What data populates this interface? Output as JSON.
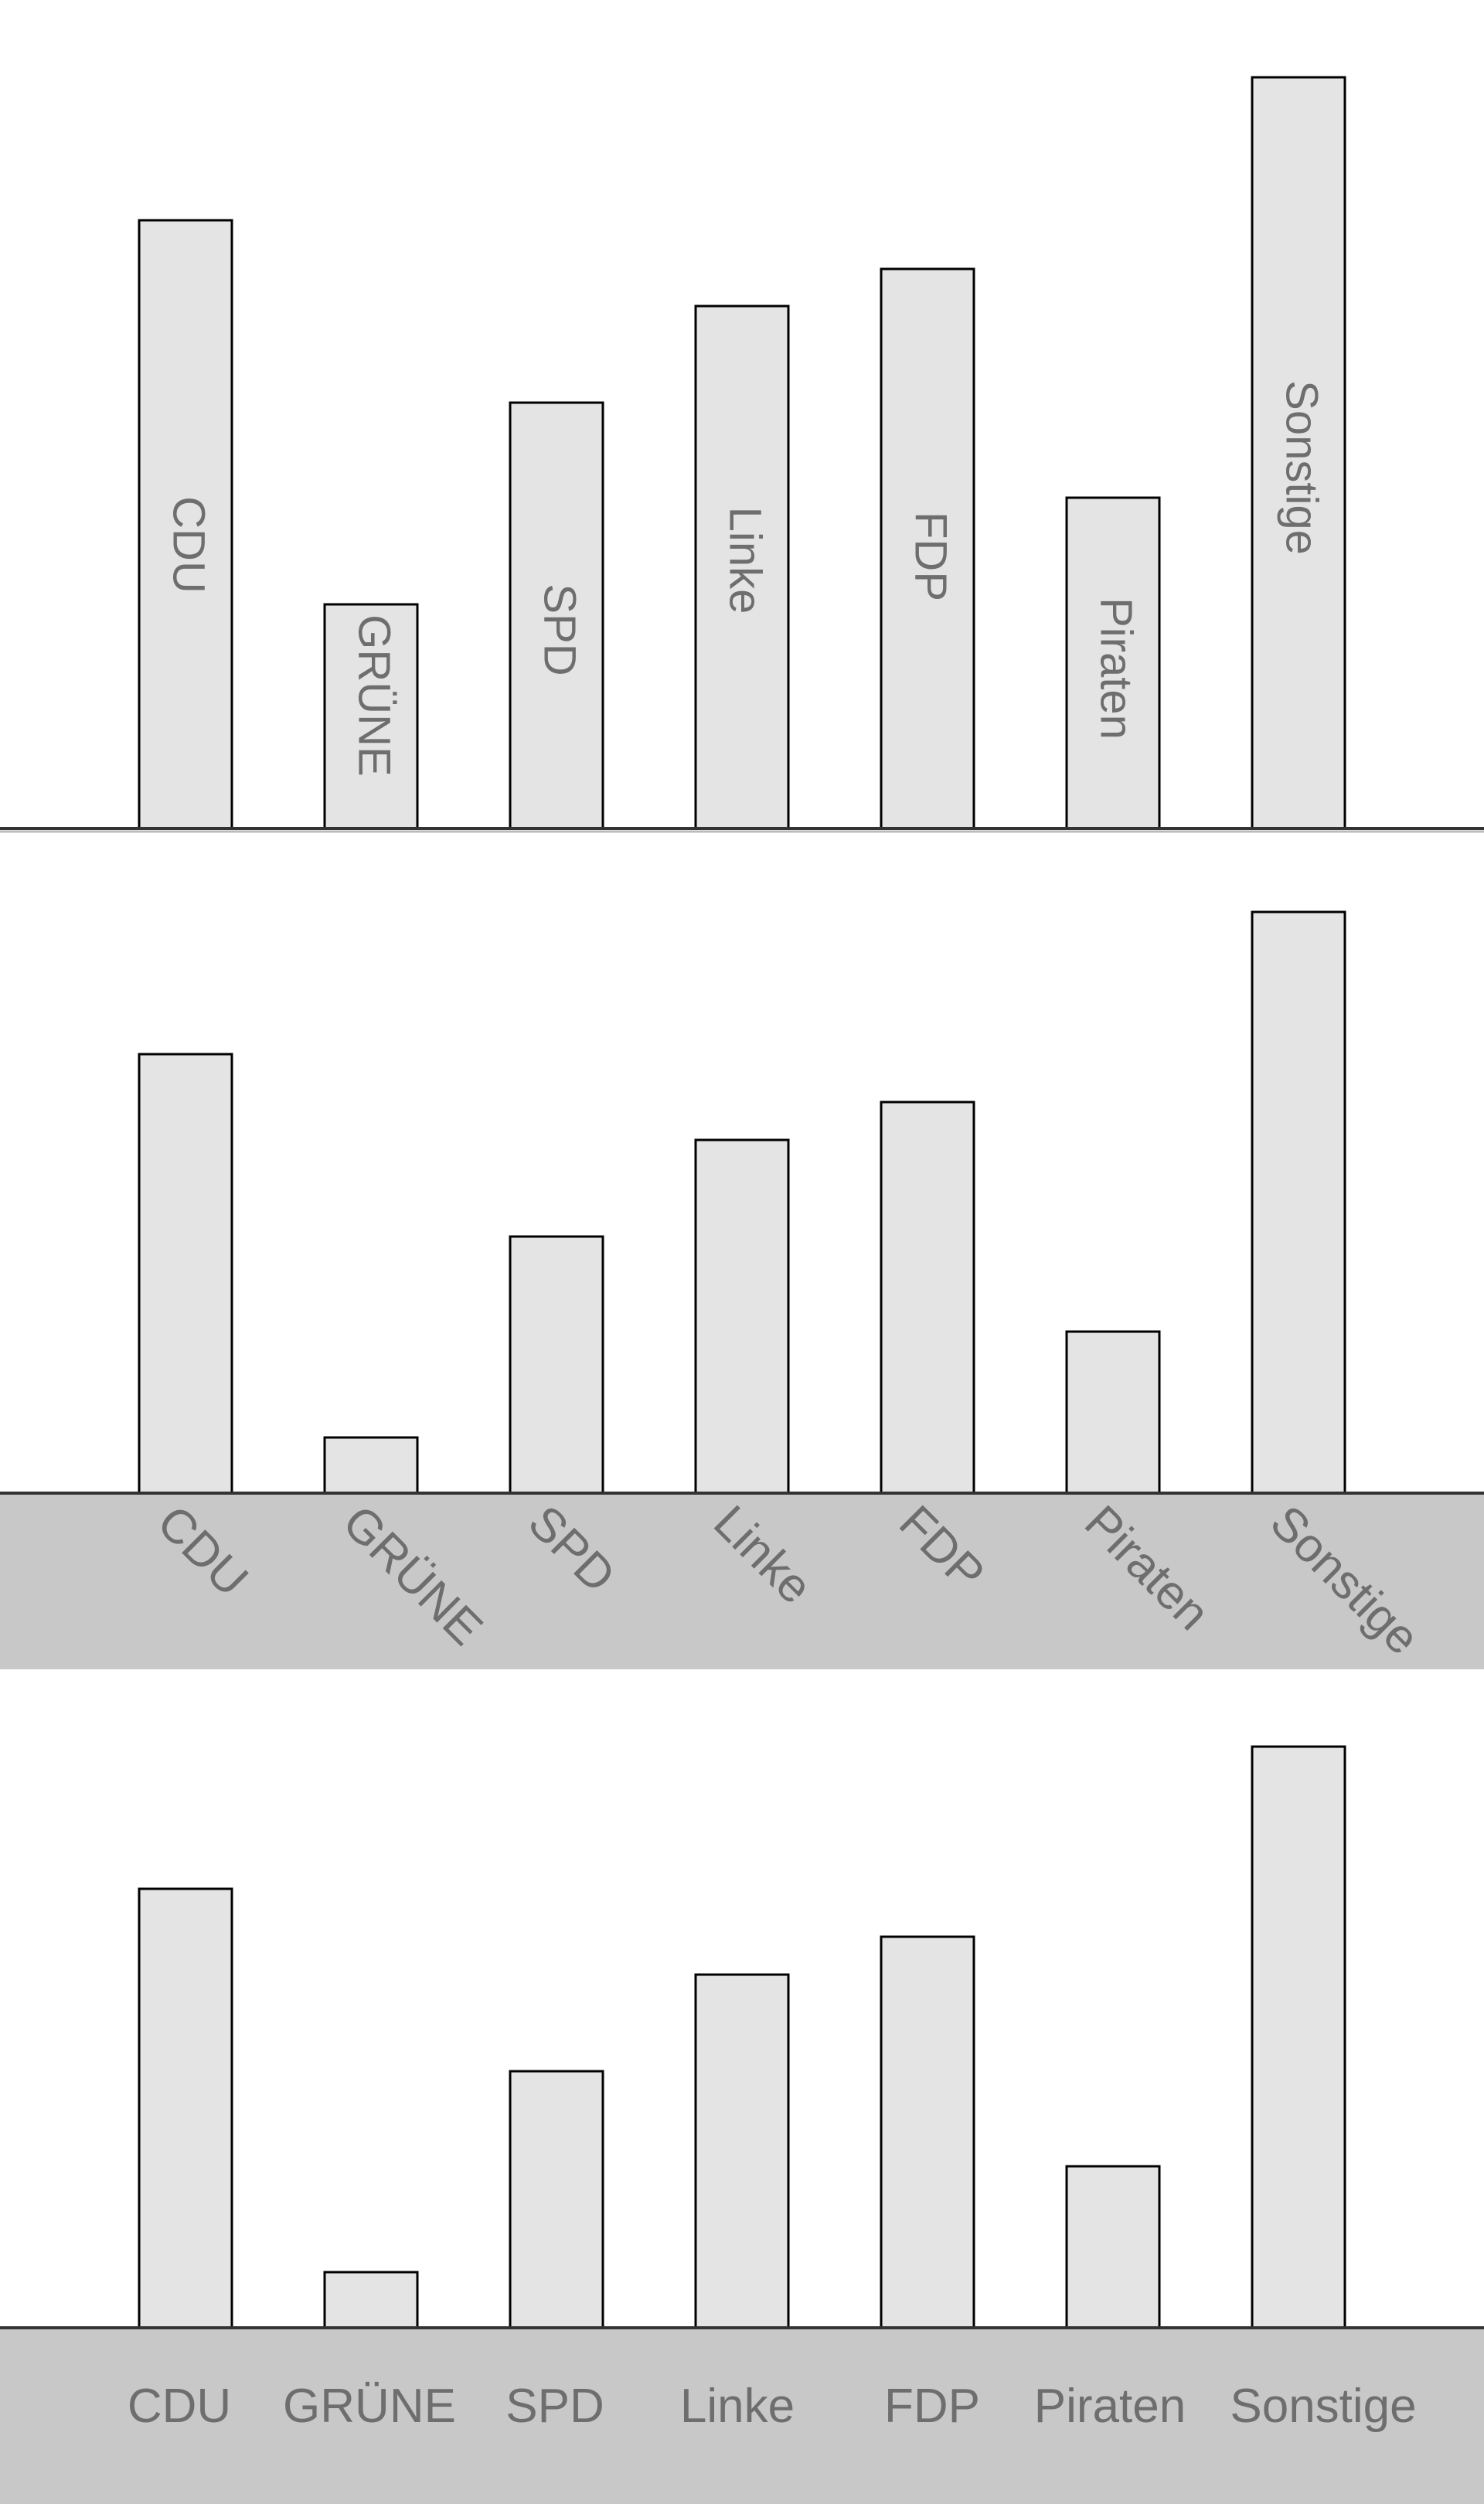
{
  "chart_data": [
    {
      "type": "bar",
      "label_style": "inside-vertical",
      "categories": [
        "CDU",
        "GRÜNE",
        "SPD",
        "Linke",
        "FDP",
        "Piraten",
        "Sonstige"
      ],
      "values": [
        787,
        290,
        551,
        676,
        724,
        428,
        972
      ],
      "title": "",
      "xlabel": "",
      "ylabel": "",
      "grid": false
    },
    {
      "type": "bar",
      "label_style": "rotated-below",
      "categories": [
        "CDU",
        "GRÜNE",
        "SPD",
        "Linke",
        "FDP",
        "Piraten",
        "Sonstige"
      ],
      "values": [
        568,
        72,
        332,
        457,
        506,
        209,
        752
      ],
      "title": "",
      "xlabel": "",
      "ylabel": "",
      "grid": false
    },
    {
      "type": "bar",
      "label_style": "horizontal-below",
      "categories": [
        "CDU",
        "GRÜNE",
        "SPD",
        "Linke",
        "FDP",
        "Piraten",
        "Sonstige"
      ],
      "values": [
        568,
        72,
        332,
        457,
        506,
        209,
        752
      ],
      "title": "",
      "xlabel": "",
      "ylabel": "",
      "grid": false
    }
  ]
}
